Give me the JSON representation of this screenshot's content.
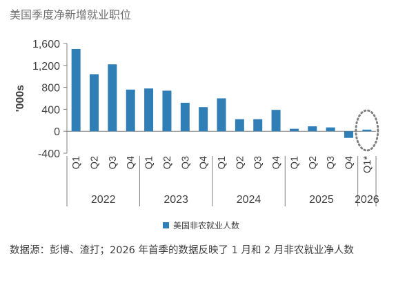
{
  "title": "美国季度净新增就业职位",
  "colors": {
    "bar": "#2f7fb6",
    "axis_text": "#404040",
    "grid_line": "#7f7f7f",
    "highlight_circle": "#808080"
  },
  "chart_data": {
    "type": "bar",
    "title": "美国季度净新增就业职位",
    "ylabel": "'000s",
    "xlabel": "",
    "ylim": [
      -400,
      1600
    ],
    "yticks": [
      -400,
      0,
      400,
      800,
      1200,
      1600
    ],
    "ytick_labels": [
      "-400",
      "0",
      "400",
      "800",
      "1,200",
      "1,600"
    ],
    "grid": false,
    "legend_position": "bottom",
    "categories": [
      "Q1",
      "Q2",
      "Q3",
      "Q4",
      "Q1",
      "Q2",
      "Q3",
      "Q4",
      "Q1",
      "Q2",
      "Q3",
      "Q4",
      "Q1",
      "Q2",
      "Q3",
      "Q4",
      "Q1*"
    ],
    "years": [
      {
        "label": "2022",
        "count": 4
      },
      {
        "label": "2023",
        "count": 4
      },
      {
        "label": "2024",
        "count": 4
      },
      {
        "label": "2025",
        "count": 4
      },
      {
        "label": "2026",
        "count": 1
      }
    ],
    "series": [
      {
        "name": "美国非农就业人数",
        "values": [
          1500,
          1040,
          1220,
          760,
          780,
          740,
          520,
          440,
          600,
          220,
          220,
          390,
          45,
          90,
          70,
          -120,
          30
        ]
      }
    ],
    "annotations": [
      {
        "type": "dotted-circle",
        "category_index": 16
      }
    ]
  },
  "legend": {
    "label": "美国非农就业人数"
  },
  "source_note": "数据源：彭博、渣打；2026 年首季的数据反映了 1 月和 2 月非农就业净人数"
}
